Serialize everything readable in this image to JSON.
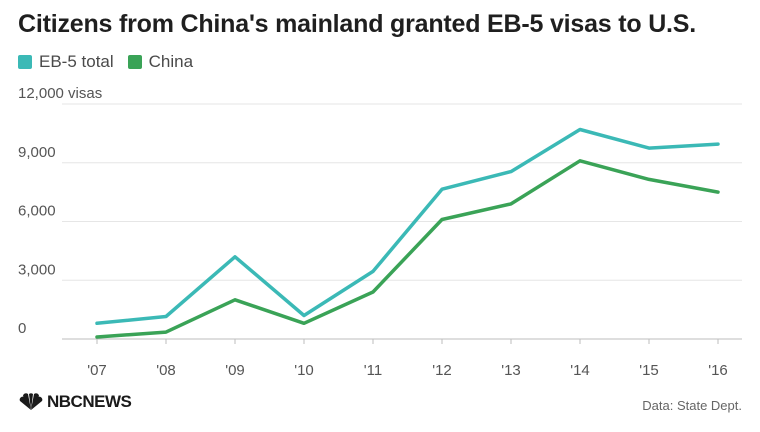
{
  "title": "Citizens from China's mainland granted EB-5 visas to U.S.",
  "legend": [
    {
      "label": "EB-5 total",
      "color": "#3bb9b6"
    },
    {
      "label": "China",
      "color": "#3aa357"
    }
  ],
  "source": "Data: State Dept.",
  "brand": {
    "name": "NBCNEWS",
    "icon": "nbc-peacock-icon"
  },
  "chart_data": {
    "type": "line",
    "title": "Citizens from China's mainland granted EB-5 visas to U.S.",
    "x": [
      "'07",
      "'08",
      "'09",
      "'10",
      "'11",
      "'12",
      "'13",
      "'14",
      "'15",
      "'16"
    ],
    "series": [
      {
        "name": "EB-5 total",
        "color": "#3bb9b6",
        "values": [
          800,
          1150,
          4200,
          1200,
          3450,
          7650,
          8550,
          10700,
          9750,
          9950
        ]
      },
      {
        "name": "China",
        "color": "#3aa357",
        "values": [
          100,
          350,
          2000,
          800,
          2400,
          6100,
          6900,
          9100,
          8150,
          7500
        ]
      }
    ],
    "yticks": [
      "0",
      "3,000",
      "6,000",
      "9,000",
      "12,000 visas"
    ],
    "ytick_values": [
      0,
      3000,
      6000,
      9000,
      12000
    ],
    "ylim": [
      0,
      12000
    ],
    "xlabel": "",
    "ylabel": "",
    "grid": true,
    "legend_position": "top-left"
  }
}
